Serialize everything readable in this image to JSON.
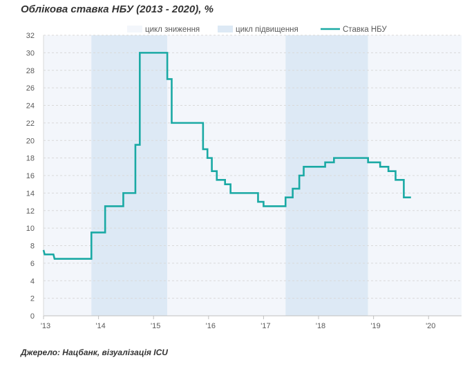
{
  "chart_data": {
    "type": "line",
    "title": "Облікова ставка НБУ (2013 - 2020), %",
    "source": "Джерело: Нацбанк, візуалізація ICU",
    "xlabel": "",
    "ylabel": "",
    "xlim": [
      2013,
      2020.6
    ],
    "ylim": [
      0,
      32
    ],
    "yticks": [
      0,
      2,
      4,
      6,
      8,
      10,
      12,
      14,
      16,
      18,
      20,
      22,
      24,
      26,
      28,
      30,
      32
    ],
    "xticks": [
      {
        "value": 2013,
        "label": "'13"
      },
      {
        "value": 2014,
        "label": "'14"
      },
      {
        "value": 2015,
        "label": "'15"
      },
      {
        "value": 2016,
        "label": "'16"
      },
      {
        "value": 2017,
        "label": "'17"
      },
      {
        "value": 2018,
        "label": "'18"
      },
      {
        "value": 2019,
        "label": "'19"
      },
      {
        "value": 2020,
        "label": "'20"
      }
    ],
    "grid": true,
    "legend_position": "top",
    "legend": [
      {
        "name": "цикл зниження",
        "kind": "band",
        "color": "#f3f6fb"
      },
      {
        "name": "цикл підвищення",
        "kind": "band",
        "color": "#dde9f5"
      },
      {
        "name": "Ставка НБУ",
        "kind": "line",
        "color": "#1aa9a4"
      }
    ],
    "bands": [
      {
        "name": "цикл зниження",
        "from": 2013.0,
        "to": 2013.87,
        "color": "#f3f6fb"
      },
      {
        "name": "цикл підвищення",
        "from": 2013.87,
        "to": 2015.25,
        "color": "#dde9f5"
      },
      {
        "name": "цикл зниження",
        "from": 2015.25,
        "to": 2017.4,
        "color": "#f3f6fb"
      },
      {
        "name": "цикл підвищення",
        "from": 2017.4,
        "to": 2018.9,
        "color": "#dde9f5"
      },
      {
        "name": "цикл зниження",
        "from": 2018.9,
        "to": 2020.6,
        "color": "#f3f6fb"
      }
    ],
    "series": [
      {
        "name": "Ставка НБУ",
        "step": true,
        "color": "#1aa9a4",
        "points": [
          [
            2013.0,
            7.5
          ],
          [
            2013.02,
            7.0
          ],
          [
            2013.18,
            7.0
          ],
          [
            2013.2,
            6.5
          ],
          [
            2013.87,
            6.5
          ],
          [
            2013.87,
            9.5
          ],
          [
            2014.12,
            9.5
          ],
          [
            2014.12,
            12.5
          ],
          [
            2014.45,
            12.5
          ],
          [
            2014.45,
            14.0
          ],
          [
            2014.67,
            14.0
          ],
          [
            2014.67,
            19.5
          ],
          [
            2014.75,
            19.5
          ],
          [
            2014.75,
            30.0
          ],
          [
            2015.25,
            30.0
          ],
          [
            2015.25,
            27.0
          ],
          [
            2015.33,
            27.0
          ],
          [
            2015.33,
            22.0
          ],
          [
            2015.9,
            22.0
          ],
          [
            2015.9,
            19.0
          ],
          [
            2015.98,
            19.0
          ],
          [
            2015.98,
            18.0
          ],
          [
            2016.06,
            18.0
          ],
          [
            2016.06,
            16.5
          ],
          [
            2016.15,
            16.5
          ],
          [
            2016.15,
            15.5
          ],
          [
            2016.3,
            15.5
          ],
          [
            2016.3,
            15.0
          ],
          [
            2016.4,
            15.0
          ],
          [
            2016.4,
            14.0
          ],
          [
            2016.9,
            14.0
          ],
          [
            2016.9,
            13.0
          ],
          [
            2017.0,
            13.0
          ],
          [
            2017.0,
            12.5
          ],
          [
            2017.4,
            12.5
          ],
          [
            2017.4,
            13.5
          ],
          [
            2017.53,
            13.5
          ],
          [
            2017.53,
            14.5
          ],
          [
            2017.65,
            14.5
          ],
          [
            2017.65,
            16.0
          ],
          [
            2017.73,
            16.0
          ],
          [
            2017.73,
            17.0
          ],
          [
            2018.12,
            17.0
          ],
          [
            2018.12,
            17.5
          ],
          [
            2018.28,
            17.5
          ],
          [
            2018.28,
            18.0
          ],
          [
            2018.9,
            18.0
          ],
          [
            2018.9,
            17.5
          ],
          [
            2019.12,
            17.5
          ],
          [
            2019.12,
            17.0
          ],
          [
            2019.27,
            17.0
          ],
          [
            2019.27,
            16.5
          ],
          [
            2019.4,
            16.5
          ],
          [
            2019.4,
            15.5
          ],
          [
            2019.55,
            15.5
          ],
          [
            2019.55,
            13.5
          ],
          [
            2019.68,
            13.5
          ]
        ]
      }
    ]
  }
}
